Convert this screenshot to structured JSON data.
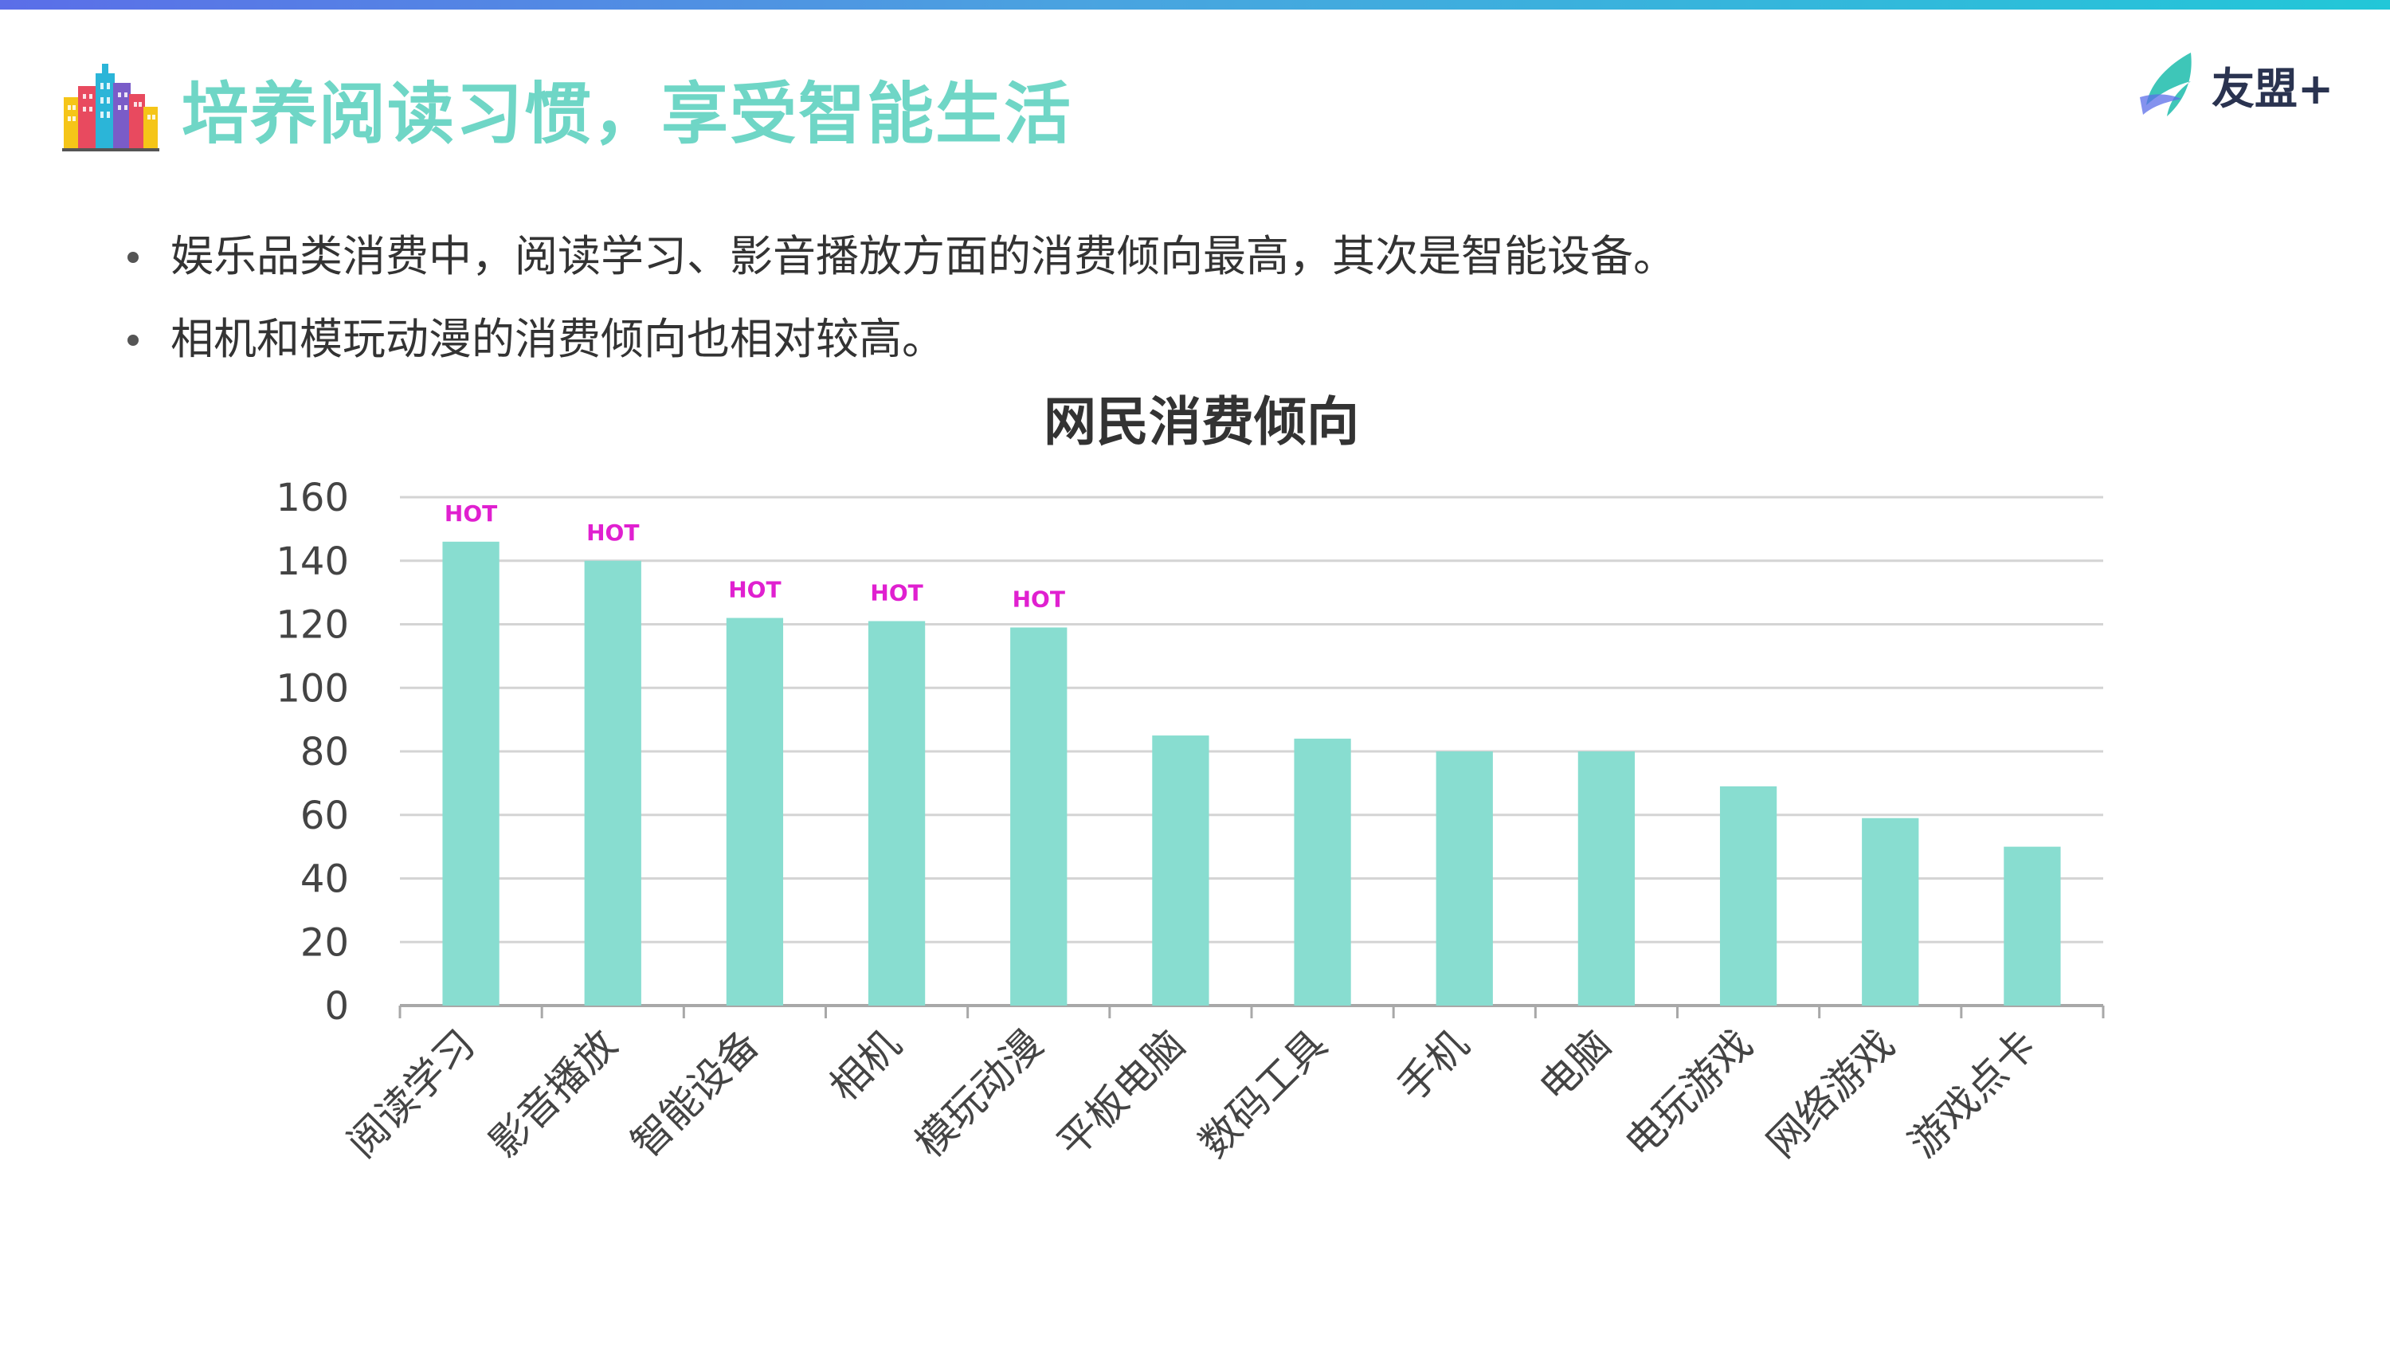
{
  "header": {
    "title": "培养阅读习惯，享受智能生活",
    "brand": "友盟+",
    "city_icon": "city-buildings-icon",
    "brand_icon": "umeng-leaf-icon",
    "accent_color": "#6fd6c6"
  },
  "bullets": [
    {
      "text": "娱乐品类消费中，阅读学习、影音播放方面的消费倾向最高，其次是智能设备。"
    },
    {
      "text": "相机和模玩动漫的消费倾向也相对较高。"
    }
  ],
  "chart_data": {
    "type": "bar",
    "title": "网民消费倾向",
    "xlabel": "",
    "ylabel": "",
    "categories": [
      "阅读学习",
      "影音播放",
      "智能设备",
      "相机",
      "模玩动漫",
      "平板电脑",
      "数码工具",
      "手机",
      "电脑",
      "电玩游戏",
      "网络游戏",
      "游戏点卡"
    ],
    "values": [
      146,
      140,
      122,
      121,
      119,
      85,
      84,
      80,
      80,
      69,
      59,
      50
    ],
    "ylim": [
      0,
      160
    ],
    "yticks": [
      0,
      20,
      40,
      60,
      80,
      100,
      120,
      140,
      160
    ],
    "grid": true,
    "legend": "none",
    "bar_color": "#88ddd0",
    "annotations": [
      {
        "category": "阅读学习",
        "text": "HOT"
      },
      {
        "category": "影音播放",
        "text": "HOT"
      },
      {
        "category": "智能设备",
        "text": "HOT"
      },
      {
        "category": "相机",
        "text": "HOT"
      },
      {
        "category": "模玩动漫",
        "text": "HOT"
      }
    ],
    "annotation_color": "#e020d0"
  }
}
